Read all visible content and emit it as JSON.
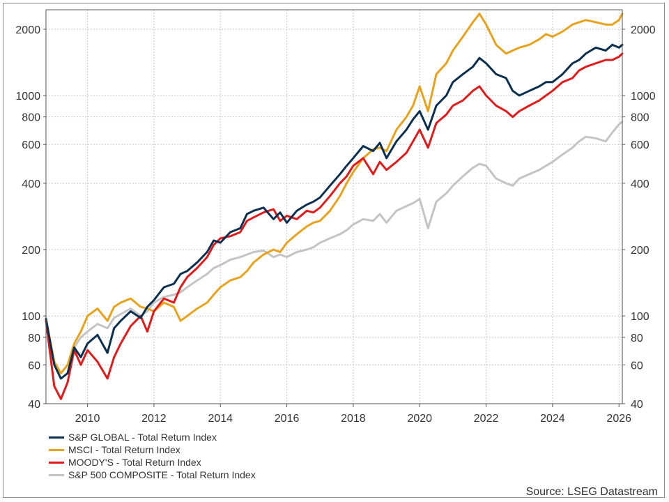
{
  "chart_data": {
    "type": "line",
    "title": "",
    "xlabel": "",
    "ylabel": "",
    "y_scale": "log",
    "ylim": [
      40,
      2450
    ],
    "xlim": [
      2008.75,
      2026.1
    ],
    "x_ticks": [
      2010,
      2012,
      2014,
      2016,
      2018,
      2020,
      2022,
      2024,
      2026
    ],
    "y_ticks": [
      40,
      60,
      80,
      100,
      200,
      400,
      600,
      800,
      1000,
      2000
    ],
    "grid": true,
    "legend_position": "bottom-left",
    "series": [
      {
        "name": "S&P GLOBAL - Total Return Index",
        "color": "#0b2f4f",
        "x": [
          2008.75,
          2009.0,
          2009.2,
          2009.4,
          2009.6,
          2009.8,
          2010.0,
          2010.3,
          2010.6,
          2010.8,
          2011.0,
          2011.3,
          2011.6,
          2011.8,
          2012.0,
          2012.3,
          2012.6,
          2012.8,
          2013.0,
          2013.3,
          2013.6,
          2013.8,
          2014.0,
          2014.3,
          2014.6,
          2014.8,
          2015.0,
          2015.3,
          2015.6,
          2015.8,
          2016.0,
          2016.3,
          2016.6,
          2016.8,
          2017.0,
          2017.3,
          2017.6,
          2017.8,
          2018.0,
          2018.3,
          2018.6,
          2018.8,
          2019.0,
          2019.3,
          2019.6,
          2019.8,
          2020.0,
          2020.25,
          2020.5,
          2020.8,
          2021.0,
          2021.3,
          2021.6,
          2021.8,
          2022.0,
          2022.3,
          2022.6,
          2022.8,
          2023.0,
          2023.3,
          2023.6,
          2023.8,
          2024.0,
          2024.3,
          2024.6,
          2024.8,
          2025.0,
          2025.3,
          2025.6,
          2025.8,
          2026.0,
          2026.1
        ],
        "values": [
          97,
          60,
          52,
          55,
          72,
          65,
          75,
          82,
          68,
          88,
          95,
          105,
          98,
          110,
          118,
          135,
          140,
          155,
          160,
          175,
          195,
          220,
          215,
          240,
          250,
          290,
          300,
          310,
          275,
          295,
          265,
          300,
          320,
          330,
          345,
          390,
          440,
          480,
          520,
          590,
          560,
          610,
          520,
          620,
          700,
          780,
          850,
          700,
          900,
          1000,
          1150,
          1250,
          1350,
          1480,
          1400,
          1250,
          1200,
          1050,
          1000,
          1050,
          1100,
          1150,
          1150,
          1250,
          1400,
          1450,
          1550,
          1650,
          1600,
          1700,
          1650,
          1700
        ]
      },
      {
        "name": "MSCI - Total Return Index",
        "color": "#e8a21c",
        "x": [
          2008.75,
          2009.0,
          2009.2,
          2009.4,
          2009.6,
          2009.8,
          2010.0,
          2010.3,
          2010.6,
          2010.8,
          2011.0,
          2011.3,
          2011.6,
          2011.8,
          2012.0,
          2012.3,
          2012.6,
          2012.8,
          2013.0,
          2013.3,
          2013.6,
          2013.8,
          2014.0,
          2014.3,
          2014.6,
          2014.8,
          2015.0,
          2015.3,
          2015.6,
          2015.8,
          2016.0,
          2016.3,
          2016.6,
          2016.8,
          2017.0,
          2017.3,
          2017.6,
          2017.8,
          2018.0,
          2018.3,
          2018.6,
          2018.8,
          2019.0,
          2019.3,
          2019.6,
          2019.8,
          2020.0,
          2020.25,
          2020.5,
          2020.8,
          2021.0,
          2021.3,
          2021.6,
          2021.8,
          2022.0,
          2022.3,
          2022.6,
          2022.8,
          2023.0,
          2023.3,
          2023.6,
          2023.8,
          2024.0,
          2024.3,
          2024.6,
          2024.8,
          2025.0,
          2025.3,
          2025.6,
          2025.8,
          2026.0,
          2026.1
        ],
        "values": [
          97,
          62,
          55,
          60,
          75,
          85,
          100,
          108,
          95,
          110,
          115,
          120,
          110,
          108,
          105,
          115,
          110,
          95,
          100,
          108,
          115,
          125,
          135,
          145,
          150,
          160,
          175,
          190,
          200,
          195,
          215,
          235,
          255,
          265,
          270,
          300,
          350,
          400,
          450,
          520,
          570,
          580,
          560,
          700,
          800,
          900,
          1100,
          850,
          1250,
          1400,
          1600,
          1850,
          2150,
          2350,
          2100,
          1700,
          1550,
          1600,
          1650,
          1700,
          1800,
          1900,
          1850,
          1950,
          2100,
          2150,
          2200,
          2150,
          2100,
          2100,
          2200,
          2350
        ]
      },
      {
        "name": "MOODY'S - Total Return Index",
        "color": "#e01b1b",
        "x": [
          2008.75,
          2009.0,
          2009.2,
          2009.4,
          2009.6,
          2009.8,
          2010.0,
          2010.3,
          2010.6,
          2010.8,
          2011.0,
          2011.3,
          2011.6,
          2011.8,
          2012.0,
          2012.3,
          2012.6,
          2012.8,
          2013.0,
          2013.3,
          2013.6,
          2013.8,
          2014.0,
          2014.3,
          2014.6,
          2014.8,
          2015.0,
          2015.3,
          2015.6,
          2015.8,
          2016.0,
          2016.3,
          2016.6,
          2016.8,
          2017.0,
          2017.3,
          2017.6,
          2017.8,
          2018.0,
          2018.3,
          2018.6,
          2018.8,
          2019.0,
          2019.3,
          2019.6,
          2019.8,
          2020.0,
          2020.25,
          2020.5,
          2020.8,
          2021.0,
          2021.3,
          2021.6,
          2021.8,
          2022.0,
          2022.3,
          2022.6,
          2022.8,
          2023.0,
          2023.3,
          2023.6,
          2023.8,
          2024.0,
          2024.3,
          2024.6,
          2024.8,
          2025.0,
          2025.3,
          2025.6,
          2025.8,
          2026.0,
          2026.1
        ],
        "values": [
          95,
          48,
          42,
          50,
          70,
          60,
          70,
          62,
          52,
          65,
          75,
          90,
          100,
          85,
          105,
          120,
          115,
          135,
          150,
          165,
          185,
          210,
          225,
          230,
          240,
          270,
          280,
          295,
          305,
          270,
          285,
          275,
          300,
          295,
          310,
          350,
          400,
          430,
          480,
          520,
          440,
          500,
          460,
          500,
          550,
          620,
          700,
          580,
          750,
          820,
          900,
          950,
          1050,
          1100,
          1000,
          900,
          850,
          800,
          850,
          900,
          950,
          1000,
          1050,
          1150,
          1200,
          1300,
          1350,
          1400,
          1450,
          1450,
          1500,
          1550
        ]
      },
      {
        "name": "S&P 500 COMPOSITE - Total Return Index",
        "color": "#c4c4c4",
        "x": [
          2008.75,
          2009.0,
          2009.2,
          2009.4,
          2009.6,
          2009.8,
          2010.0,
          2010.3,
          2010.6,
          2010.8,
          2011.0,
          2011.3,
          2011.6,
          2011.8,
          2012.0,
          2012.3,
          2012.6,
          2012.8,
          2013.0,
          2013.3,
          2013.6,
          2013.8,
          2014.0,
          2014.3,
          2014.6,
          2014.8,
          2015.0,
          2015.3,
          2015.6,
          2015.8,
          2016.0,
          2016.3,
          2016.6,
          2016.8,
          2017.0,
          2017.3,
          2017.6,
          2017.8,
          2018.0,
          2018.3,
          2018.6,
          2018.8,
          2019.0,
          2019.3,
          2019.6,
          2019.8,
          2020.0,
          2020.25,
          2020.5,
          2020.8,
          2021.0,
          2021.3,
          2021.6,
          2021.8,
          2022.0,
          2022.3,
          2022.6,
          2022.8,
          2023.0,
          2023.3,
          2023.6,
          2023.8,
          2024.0,
          2024.3,
          2024.6,
          2024.8,
          2025.0,
          2025.3,
          2025.6,
          2025.8,
          2026.0,
          2026.1
        ],
        "values": [
          98,
          60,
          55,
          60,
          72,
          80,
          85,
          92,
          88,
          98,
          102,
          108,
          100,
          105,
          115,
          122,
          125,
          128,
          135,
          145,
          155,
          165,
          170,
          180,
          185,
          190,
          195,
          198,
          185,
          190,
          185,
          195,
          200,
          205,
          215,
          225,
          235,
          245,
          260,
          275,
          270,
          290,
          265,
          300,
          315,
          325,
          340,
          250,
          330,
          360,
          390,
          430,
          470,
          490,
          480,
          420,
          400,
          390,
          420,
          440,
          460,
          480,
          500,
          540,
          580,
          620,
          650,
          640,
          620,
          680,
          740,
          760
        ]
      }
    ]
  },
  "legend": {
    "items": [
      {
        "label": "S&P GLOBAL - Total Return Index",
        "color": "#0b2f4f"
      },
      {
        "label": "MSCI - Total Return Index",
        "color": "#e8a21c"
      },
      {
        "label": "MOODY'S - Total Return Index",
        "color": "#e01b1b"
      },
      {
        "label": "S&P 500 COMPOSITE - Total Return Index",
        "color": "#c4c4c4"
      }
    ]
  },
  "source": "Source: LSEG Datastream"
}
